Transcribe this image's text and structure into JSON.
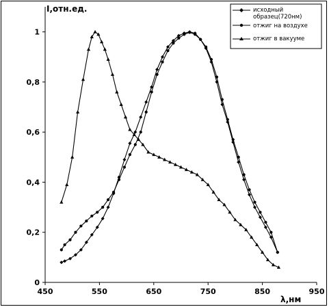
{
  "chart_data": {
    "type": "line",
    "title": "",
    "xlabel": "λ,нм",
    "ylabel": "I,отн.ед.",
    "xlim": [
      450,
      950
    ],
    "ylim": [
      0,
      1.1
    ],
    "x_ticks": [
      450,
      550,
      650,
      750,
      850,
      950
    ],
    "y_ticks": [
      0,
      0.2,
      0.4,
      0.6,
      0.8,
      1
    ],
    "x_tick_labels": [
      "450",
      "550",
      "650",
      "750",
      "850",
      "950"
    ],
    "y_tick_labels": [
      "0",
      "0,2",
      "0,4",
      "0,6",
      "0,8",
      "1"
    ],
    "grid": false,
    "legend_position": "top-right",
    "series": [
      {
        "name": "исходный образец(720нм)",
        "marker": "diamond",
        "x": [
          480,
          486,
          496,
          506,
          516,
          526,
          536,
          546,
          556,
          566,
          576,
          586,
          596,
          606,
          616,
          626,
          636,
          646,
          656,
          666,
          676,
          686,
          696,
          706,
          716,
          726,
          736,
          746,
          756,
          766,
          776,
          786,
          796,
          806,
          816,
          826,
          836,
          846,
          856,
          866,
          878
        ],
        "y": [
          0.08,
          0.085,
          0.095,
          0.11,
          0.13,
          0.16,
          0.19,
          0.22,
          0.255,
          0.3,
          0.355,
          0.42,
          0.49,
          0.555,
          0.6,
          0.66,
          0.72,
          0.78,
          0.85,
          0.9,
          0.94,
          0.965,
          0.985,
          0.995,
          1.0,
          0.995,
          0.97,
          0.935,
          0.88,
          0.8,
          0.71,
          0.64,
          0.56,
          0.48,
          0.41,
          0.35,
          0.3,
          0.26,
          0.22,
          0.18,
          0.12
        ]
      },
      {
        "name": "отжиг на воздухе",
        "marker": "circle",
        "x": [
          480,
          486,
          496,
          506,
          516,
          526,
          536,
          546,
          556,
          566,
          576,
          586,
          596,
          606,
          616,
          626,
          636,
          646,
          656,
          666,
          676,
          686,
          696,
          706,
          716,
          726,
          736,
          746,
          756,
          766,
          776,
          786,
          796,
          806,
          816,
          826,
          836,
          846,
          856,
          866,
          878
        ],
        "y": [
          0.13,
          0.15,
          0.17,
          0.2,
          0.225,
          0.245,
          0.265,
          0.28,
          0.3,
          0.33,
          0.36,
          0.41,
          0.46,
          0.51,
          0.55,
          0.6,
          0.68,
          0.76,
          0.83,
          0.88,
          0.925,
          0.955,
          0.975,
          0.99,
          0.998,
          0.99,
          0.97,
          0.94,
          0.89,
          0.82,
          0.73,
          0.65,
          0.57,
          0.5,
          0.43,
          0.37,
          0.32,
          0.28,
          0.24,
          0.2,
          0.12
        ]
      },
      {
        "name": "отжиг в вакууме",
        "marker": "triangle",
        "x": [
          480,
          490,
          500,
          510,
          520,
          530,
          536,
          542,
          548,
          554,
          560,
          566,
          574,
          582,
          590,
          598,
          606,
          614,
          622,
          630,
          640,
          650,
          660,
          670,
          680,
          690,
          700,
          710,
          720,
          730,
          740,
          750,
          760,
          770,
          780,
          790,
          800,
          810,
          820,
          830,
          840,
          850,
          860,
          870,
          880
        ],
        "y": [
          0.32,
          0.39,
          0.5,
          0.68,
          0.81,
          0.93,
          0.98,
          1.0,
          0.99,
          0.96,
          0.93,
          0.89,
          0.83,
          0.76,
          0.71,
          0.66,
          0.61,
          0.59,
          0.57,
          0.55,
          0.52,
          0.51,
          0.5,
          0.49,
          0.48,
          0.47,
          0.46,
          0.45,
          0.44,
          0.43,
          0.41,
          0.39,
          0.36,
          0.33,
          0.31,
          0.28,
          0.25,
          0.23,
          0.21,
          0.18,
          0.15,
          0.12,
          0.09,
          0.07,
          0.06
        ]
      }
    ]
  }
}
